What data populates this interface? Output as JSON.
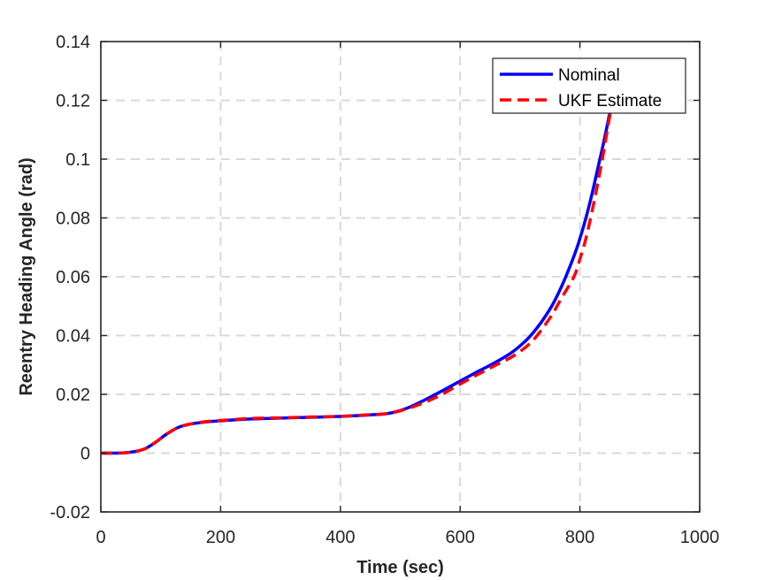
{
  "chart_data": {
    "type": "line",
    "title": "",
    "xlabel": "Time (sec)",
    "ylabel": "Reentry Heading Angle (rad)",
    "xlim": [
      0,
      1000
    ],
    "ylim": [
      -0.02,
      0.14
    ],
    "xticks": [
      0,
      200,
      400,
      600,
      800,
      1000
    ],
    "xtick_labels": [
      "0",
      "200",
      "400",
      "600",
      "800",
      "1000"
    ],
    "yticks": [
      -0.02,
      0,
      0.02,
      0.04,
      0.06,
      0.08,
      0.1,
      0.12,
      0.14
    ],
    "ytick_labels": [
      "-0.02",
      "0",
      "0.02",
      "0.04",
      "0.06",
      "0.08",
      "0.1",
      "0.12",
      "0.14"
    ],
    "grid": true,
    "legend_position": "top-right",
    "series": [
      {
        "name": "Nominal",
        "color": "#0000ff",
        "style": "solid",
        "x": [
          0,
          40,
          70,
          90,
          110,
          130,
          150,
          175,
          200,
          250,
          300,
          350,
          400,
          450,
          480,
          510,
          540,
          570,
          600,
          630,
          660,
          690,
          720,
          750,
          770,
          790,
          800,
          810,
          820,
          830,
          840,
          850,
          857
        ],
        "y": [
          0,
          0.0001,
          0.0012,
          0.0035,
          0.0065,
          0.0088,
          0.0099,
          0.0106,
          0.011,
          0.0116,
          0.0119,
          0.0122,
          0.0125,
          0.013,
          0.0135,
          0.0152,
          0.018,
          0.0212,
          0.0245,
          0.0278,
          0.031,
          0.0348,
          0.0405,
          0.049,
          0.057,
          0.067,
          0.073,
          0.08,
          0.088,
          0.097,
          0.106,
          0.116,
          0.124
        ]
      },
      {
        "name": "UKF Estimate",
        "color": "#ff0000",
        "style": "dashed",
        "x": [
          0,
          40,
          70,
          90,
          110,
          130,
          150,
          175,
          200,
          250,
          300,
          350,
          400,
          450,
          480,
          510,
          540,
          570,
          600,
          630,
          660,
          690,
          720,
          750,
          770,
          790,
          800,
          810,
          820,
          830,
          840,
          850,
          860,
          863
        ],
        "y": [
          0,
          0.0001,
          0.0012,
          0.0035,
          0.0065,
          0.0088,
          0.0099,
          0.0107,
          0.0111,
          0.0118,
          0.012,
          0.0123,
          0.0125,
          0.0131,
          0.0135,
          0.015,
          0.0172,
          0.02,
          0.0235,
          0.0268,
          0.03,
          0.0332,
          0.038,
          0.046,
          0.053,
          0.06,
          0.066,
          0.073,
          0.082,
          0.092,
          0.103,
          0.115,
          0.125,
          0.128
        ]
      }
    ]
  }
}
